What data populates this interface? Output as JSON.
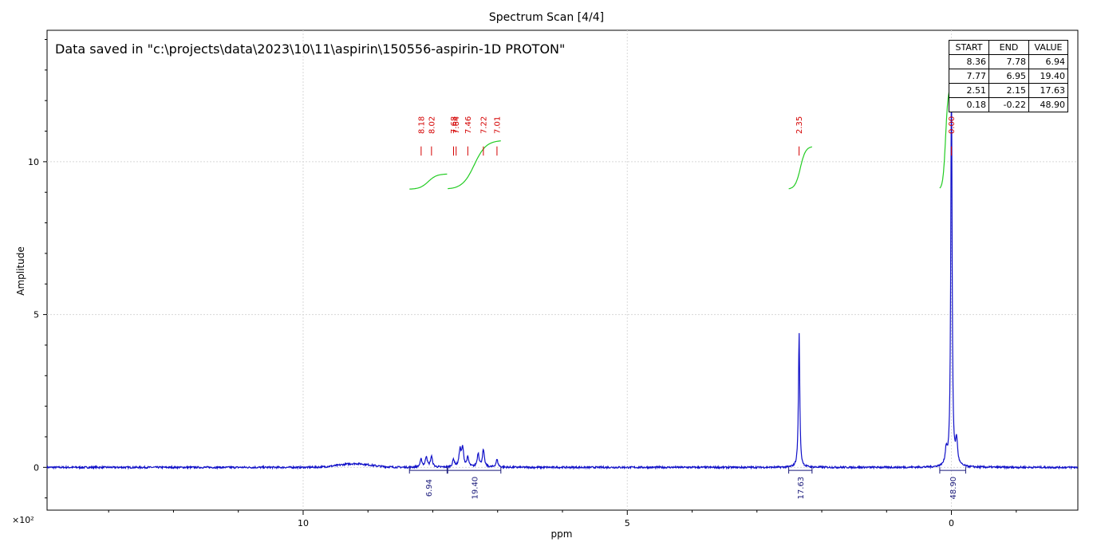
{
  "title": "Spectrum Scan [4/4]",
  "annotation": "Data saved in \"c:\\projects\\data\\2023\\10\\11\\aspirin\\150556-aspirin-1D PROTON\"",
  "scale_label": "×10²",
  "chart_data": {
    "type": "line",
    "title": "Spectrum Scan [4/4]",
    "xlabel": "ppm",
    "ylabel": "Amplitude",
    "x_reversed": true,
    "xlim": [
      13.95,
      -1.95
    ],
    "ylim": [
      -1.4,
      14.3
    ],
    "x_ticks": [
      10,
      5,
      0
    ],
    "y_ticks": [
      0,
      5,
      10
    ],
    "grid": true,
    "series": [
      {
        "color": "#1010c8",
        "peaks": [
          {
            "ppm": 8.18,
            "height": 0.25
          },
          {
            "ppm": 8.1,
            "height": 0.35
          },
          {
            "ppm": 8.02,
            "height": 0.35
          },
          {
            "ppm": 7.68,
            "height": 0.25
          },
          {
            "ppm": 7.58,
            "height": 0.55
          },
          {
            "ppm": 7.54,
            "height": 0.6
          },
          {
            "ppm": 7.46,
            "height": 0.3
          },
          {
            "ppm": 7.3,
            "height": 0.45
          },
          {
            "ppm": 7.22,
            "height": 0.55
          },
          {
            "ppm": 7.01,
            "height": 0.25
          },
          {
            "ppm": 2.35,
            "height": 4.4
          },
          {
            "ppm": 0.08,
            "height": 0.5
          },
          {
            "ppm": 0.0,
            "height": 12.8
          },
          {
            "ppm": -0.08,
            "height": 0.8
          }
        ],
        "baseline_hump": {
          "ppm": 9.2,
          "height": 0.12
        }
      }
    ],
    "peak_labels": [
      "8.18",
      "8.02",
      "7.68",
      "7.64",
      "7.46",
      "7.22",
      "7.01",
      "2.35",
      "0.00"
    ],
    "integrals": [
      {
        "start": 8.36,
        "end": 7.78,
        "value": "6.94"
      },
      {
        "start": 7.77,
        "end": 6.95,
        "value": "19.40"
      },
      {
        "start": 2.51,
        "end": 2.15,
        "value": "17.63"
      },
      {
        "start": 0.18,
        "end": -0.22,
        "value": "48.90"
      }
    ],
    "integral_curve_color": "#22cc22",
    "peak_label_color": "#d40000"
  },
  "integral_table": {
    "headers": [
      "START",
      "END",
      "VALUE"
    ],
    "rows": [
      [
        "8.36",
        "7.78",
        "6.94"
      ],
      [
        "7.77",
        "6.95",
        "19.40"
      ],
      [
        "2.51",
        "2.15",
        "17.63"
      ],
      [
        "0.18",
        "-0.22",
        "48.90"
      ]
    ]
  }
}
